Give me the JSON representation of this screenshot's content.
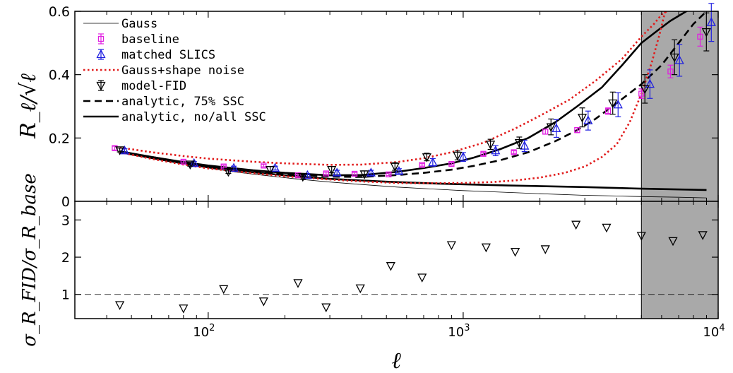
{
  "chart_data": [
    {
      "type": "line",
      "panel": "top",
      "xlabel": "ℓ",
      "ylabel": "R_ℓ/√ℓ",
      "xscale": "log",
      "xlim": [
        30,
        10000
      ],
      "ylim": [
        0,
        0.6
      ],
      "yticks": [
        "0",
        "0.2",
        "0.4",
        "0.6"
      ],
      "shaded_region": {
        "x_from": 5000,
        "x_to": 10000,
        "color": "#a9a9a9"
      },
      "legend": {
        "position": "top-left",
        "entries": [
          {
            "key": "gauss",
            "label": "Gauss"
          },
          {
            "key": "baseline",
            "label": "baseline"
          },
          {
            "key": "matched",
            "label": "matched SLICS"
          },
          {
            "key": "gsn",
            "label": "Gauss+shape noise"
          },
          {
            "key": "fid",
            "label": "model-FID"
          },
          {
            "key": "ssc75",
            "label": "analytic, 75% SSC"
          },
          {
            "key": "ssc",
            "label": "analytic, no/all SSC"
          }
        ]
      },
      "series": [
        {
          "name": "Gauss",
          "style": "thin-solid",
          "color": "#000000",
          "x": [
            45,
            60,
            80,
            100,
            130,
            170,
            220,
            300,
            400,
            550,
            750,
            1000,
            1500,
            2000,
            3000,
            4000,
            5000,
            7000,
            9000
          ],
          "y": [
            0.155,
            0.135,
            0.117,
            0.105,
            0.092,
            0.081,
            0.071,
            0.061,
            0.053,
            0.045,
            0.039,
            0.034,
            0.028,
            0.024,
            0.019,
            0.017,
            0.015,
            0.013,
            0.011
          ]
        },
        {
          "name": "analytic, no SSC",
          "style": "thick-solid",
          "color": "#000000",
          "x": [
            45,
            60,
            80,
            100,
            150,
            200,
            300,
            500,
            800,
            1500,
            3000,
            5000,
            9000
          ],
          "y": [
            0.155,
            0.137,
            0.12,
            0.108,
            0.092,
            0.082,
            0.071,
            0.062,
            0.056,
            0.05,
            0.045,
            0.04,
            0.036
          ]
        },
        {
          "name": "analytic, all SSC",
          "style": "thick-solid",
          "color": "#000000",
          "x": [
            45,
            60,
            80,
            100,
            150,
            200,
            300,
            400,
            550,
            700,
            900,
            1100,
            1400,
            1800,
            2300,
            2800,
            3500,
            4200,
            5000,
            5800,
            6500,
            7500,
            8500
          ],
          "y": [
            0.158,
            0.14,
            0.124,
            0.113,
            0.098,
            0.09,
            0.082,
            0.083,
            0.093,
            0.105,
            0.12,
            0.138,
            0.165,
            0.2,
            0.25,
            0.3,
            0.36,
            0.43,
            0.5,
            0.54,
            0.57,
            0.6,
            0.62
          ]
        },
        {
          "name": "analytic, 75% SSC",
          "style": "dashed",
          "color": "#000000",
          "x": [
            45,
            60,
            80,
            100,
            150,
            200,
            300,
            400,
            550,
            700,
            900,
            1100,
            1400,
            1800,
            2300,
            2800,
            3300,
            4000,
            5000,
            6000,
            7000,
            8000,
            9000
          ],
          "y": [
            0.157,
            0.14,
            0.123,
            0.111,
            0.096,
            0.087,
            0.078,
            0.077,
            0.083,
            0.09,
            0.1,
            0.112,
            0.13,
            0.155,
            0.19,
            0.225,
            0.26,
            0.31,
            0.37,
            0.43,
            0.5,
            0.56,
            0.6
          ]
        },
        {
          "name": "Gauss+shape noise upper",
          "style": "dotted",
          "color": "#e11a1a",
          "x": [
            45,
            60,
            80,
            100,
            150,
            200,
            300,
            400,
            550,
            700,
            900,
            1200,
            1600,
            2000,
            2600,
            3300,
            4200,
            5000,
            5600,
            6000,
            6300
          ],
          "y": [
            0.17,
            0.155,
            0.143,
            0.135,
            0.125,
            0.12,
            0.115,
            0.116,
            0.124,
            0.136,
            0.155,
            0.185,
            0.23,
            0.27,
            0.32,
            0.38,
            0.45,
            0.52,
            0.56,
            0.59,
            0.6
          ]
        },
        {
          "name": "Gauss+shape noise lower",
          "style": "dotted",
          "color": "#e11a1a",
          "x": [
            45,
            60,
            80,
            100,
            150,
            200,
            300,
            400,
            550,
            700,
            1000,
            1300,
            1600,
            2000,
            2500,
            3000,
            3500,
            4000,
            4500,
            5000,
            5500,
            5900,
            6200
          ],
          "y": [
            0.155,
            0.134,
            0.116,
            0.104,
            0.089,
            0.079,
            0.069,
            0.063,
            0.058,
            0.057,
            0.058,
            0.061,
            0.066,
            0.075,
            0.09,
            0.11,
            0.14,
            0.18,
            0.25,
            0.34,
            0.44,
            0.53,
            0.6
          ]
        }
      ],
      "points": [
        {
          "name": "baseline",
          "marker": "square",
          "color": "#e11ee1",
          "x": [
            43,
            80,
            115,
            165,
            225,
            290,
            375,
            510,
            690,
            900,
            1200,
            1580,
            2100,
            2800,
            3700,
            5000,
            6500,
            8500
          ],
          "y": [
            0.168,
            0.125,
            0.11,
            0.113,
            0.082,
            0.088,
            0.087,
            0.085,
            0.115,
            0.118,
            0.15,
            0.155,
            0.22,
            0.225,
            0.285,
            0.34,
            0.41,
            0.52
          ],
          "err": [
            0.006,
            0.004,
            0.004,
            0.004,
            0.003,
            0.004,
            0.004,
            0.004,
            0.004,
            0.004,
            0.005,
            0.005,
            0.008,
            0.008,
            0.01,
            0.015,
            0.02,
            0.03
          ]
        },
        {
          "name": "matched SLICS",
          "marker": "triangle-up",
          "color": "#1f1fe0",
          "x": [
            47,
            88,
            126,
            183,
            245,
            320,
            435,
            560,
            760,
            1000,
            1340,
            1740,
            2320,
            3090,
            4050,
            5400,
            7050,
            9400
          ],
          "y": [
            0.16,
            0.12,
            0.105,
            0.105,
            0.082,
            0.09,
            0.09,
            0.095,
            0.123,
            0.14,
            0.16,
            0.175,
            0.23,
            0.255,
            0.305,
            0.37,
            0.445,
            0.565
          ],
          "err": [
            0.006,
            0.006,
            0.006,
            0.006,
            0.006,
            0.008,
            0.008,
            0.008,
            0.012,
            0.014,
            0.016,
            0.018,
            0.028,
            0.03,
            0.038,
            0.045,
            0.05,
            0.06
          ]
        },
        {
          "name": "model-FID",
          "marker": "triangle-down",
          "color": "#000000",
          "x": [
            45,
            85,
            120,
            175,
            235,
            305,
            410,
            540,
            720,
            950,
            1280,
            1660,
            2210,
            2930,
            3860,
            5160,
            6740,
            8990
          ],
          "y": [
            0.162,
            0.117,
            0.094,
            0.1,
            0.078,
            0.1,
            0.086,
            0.11,
            0.14,
            0.145,
            0.18,
            0.185,
            0.235,
            0.265,
            0.31,
            0.355,
            0.455,
            0.535
          ],
          "err": [
            0.006,
            0.006,
            0.006,
            0.01,
            0.008,
            0.01,
            0.01,
            0.012,
            0.012,
            0.014,
            0.016,
            0.018,
            0.025,
            0.03,
            0.035,
            0.045,
            0.055,
            0.06
          ]
        }
      ]
    },
    {
      "type": "scatter",
      "panel": "bottom",
      "xlabel": "ℓ",
      "ylabel": "σ_R_FID/σ_R_base",
      "xscale": "log",
      "xlim": [
        30,
        10000
      ],
      "ylim": [
        0.35,
        3.5
      ],
      "yticks": [
        "1",
        "2",
        "3"
      ],
      "xticks": [
        "10^2",
        "10^3",
        "10^4"
      ],
      "reference_line": {
        "y": 1,
        "style": "dashed"
      },
      "shaded_region": {
        "x_from": 5000,
        "x_to": 10000,
        "color": "#a9a9a9"
      },
      "series": [
        {
          "name": "model-FID / baseline",
          "marker": "triangle-down",
          "color": "#000000",
          "x": [
            45,
            80,
            115,
            165,
            225,
            290,
            395,
            520,
            690,
            900,
            1230,
            1600,
            2100,
            2770,
            3650,
            5000,
            6650,
            8700
          ],
          "y": [
            0.72,
            0.63,
            1.15,
            0.82,
            1.31,
            0.66,
            1.17,
            1.77,
            1.46,
            2.33,
            2.27,
            2.15,
            2.22,
            2.88,
            2.8,
            2.58,
            2.44,
            2.6
          ]
        }
      ]
    }
  ]
}
